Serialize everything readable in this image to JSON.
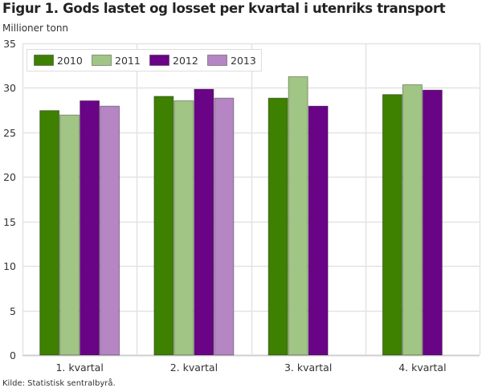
{
  "chart_data": {
    "type": "bar",
    "title": "Figur 1. Gods lastet og losset per kvartal i utenriks transport",
    "ylabel": "Millioner tonn",
    "xlabel": "",
    "source": "Kilde: Statistisk sentralbyrå.",
    "ylim": [
      0,
      35
    ],
    "yticks": [
      "0",
      "5",
      "10",
      "15",
      "20",
      "25",
      "30",
      "35"
    ],
    "grid": true,
    "legend_position": "top-left",
    "categories": [
      "1. kvartal",
      "2. kvartal",
      "3. kvartal",
      "4. kvartal"
    ],
    "series": [
      {
        "name": "2010",
        "color": "#3e8000",
        "values": [
          27.5,
          29.1,
          28.9,
          29.3
        ]
      },
      {
        "name": "2011",
        "color": "#a0c584",
        "values": [
          27.0,
          28.6,
          31.3,
          30.4
        ]
      },
      {
        "name": "2012",
        "color": "#690486",
        "values": [
          28.6,
          29.9,
          28.0,
          29.8
        ]
      },
      {
        "name": "2013",
        "color": "#b585c4",
        "values": [
          28.0,
          28.9,
          null,
          null
        ]
      }
    ]
  }
}
